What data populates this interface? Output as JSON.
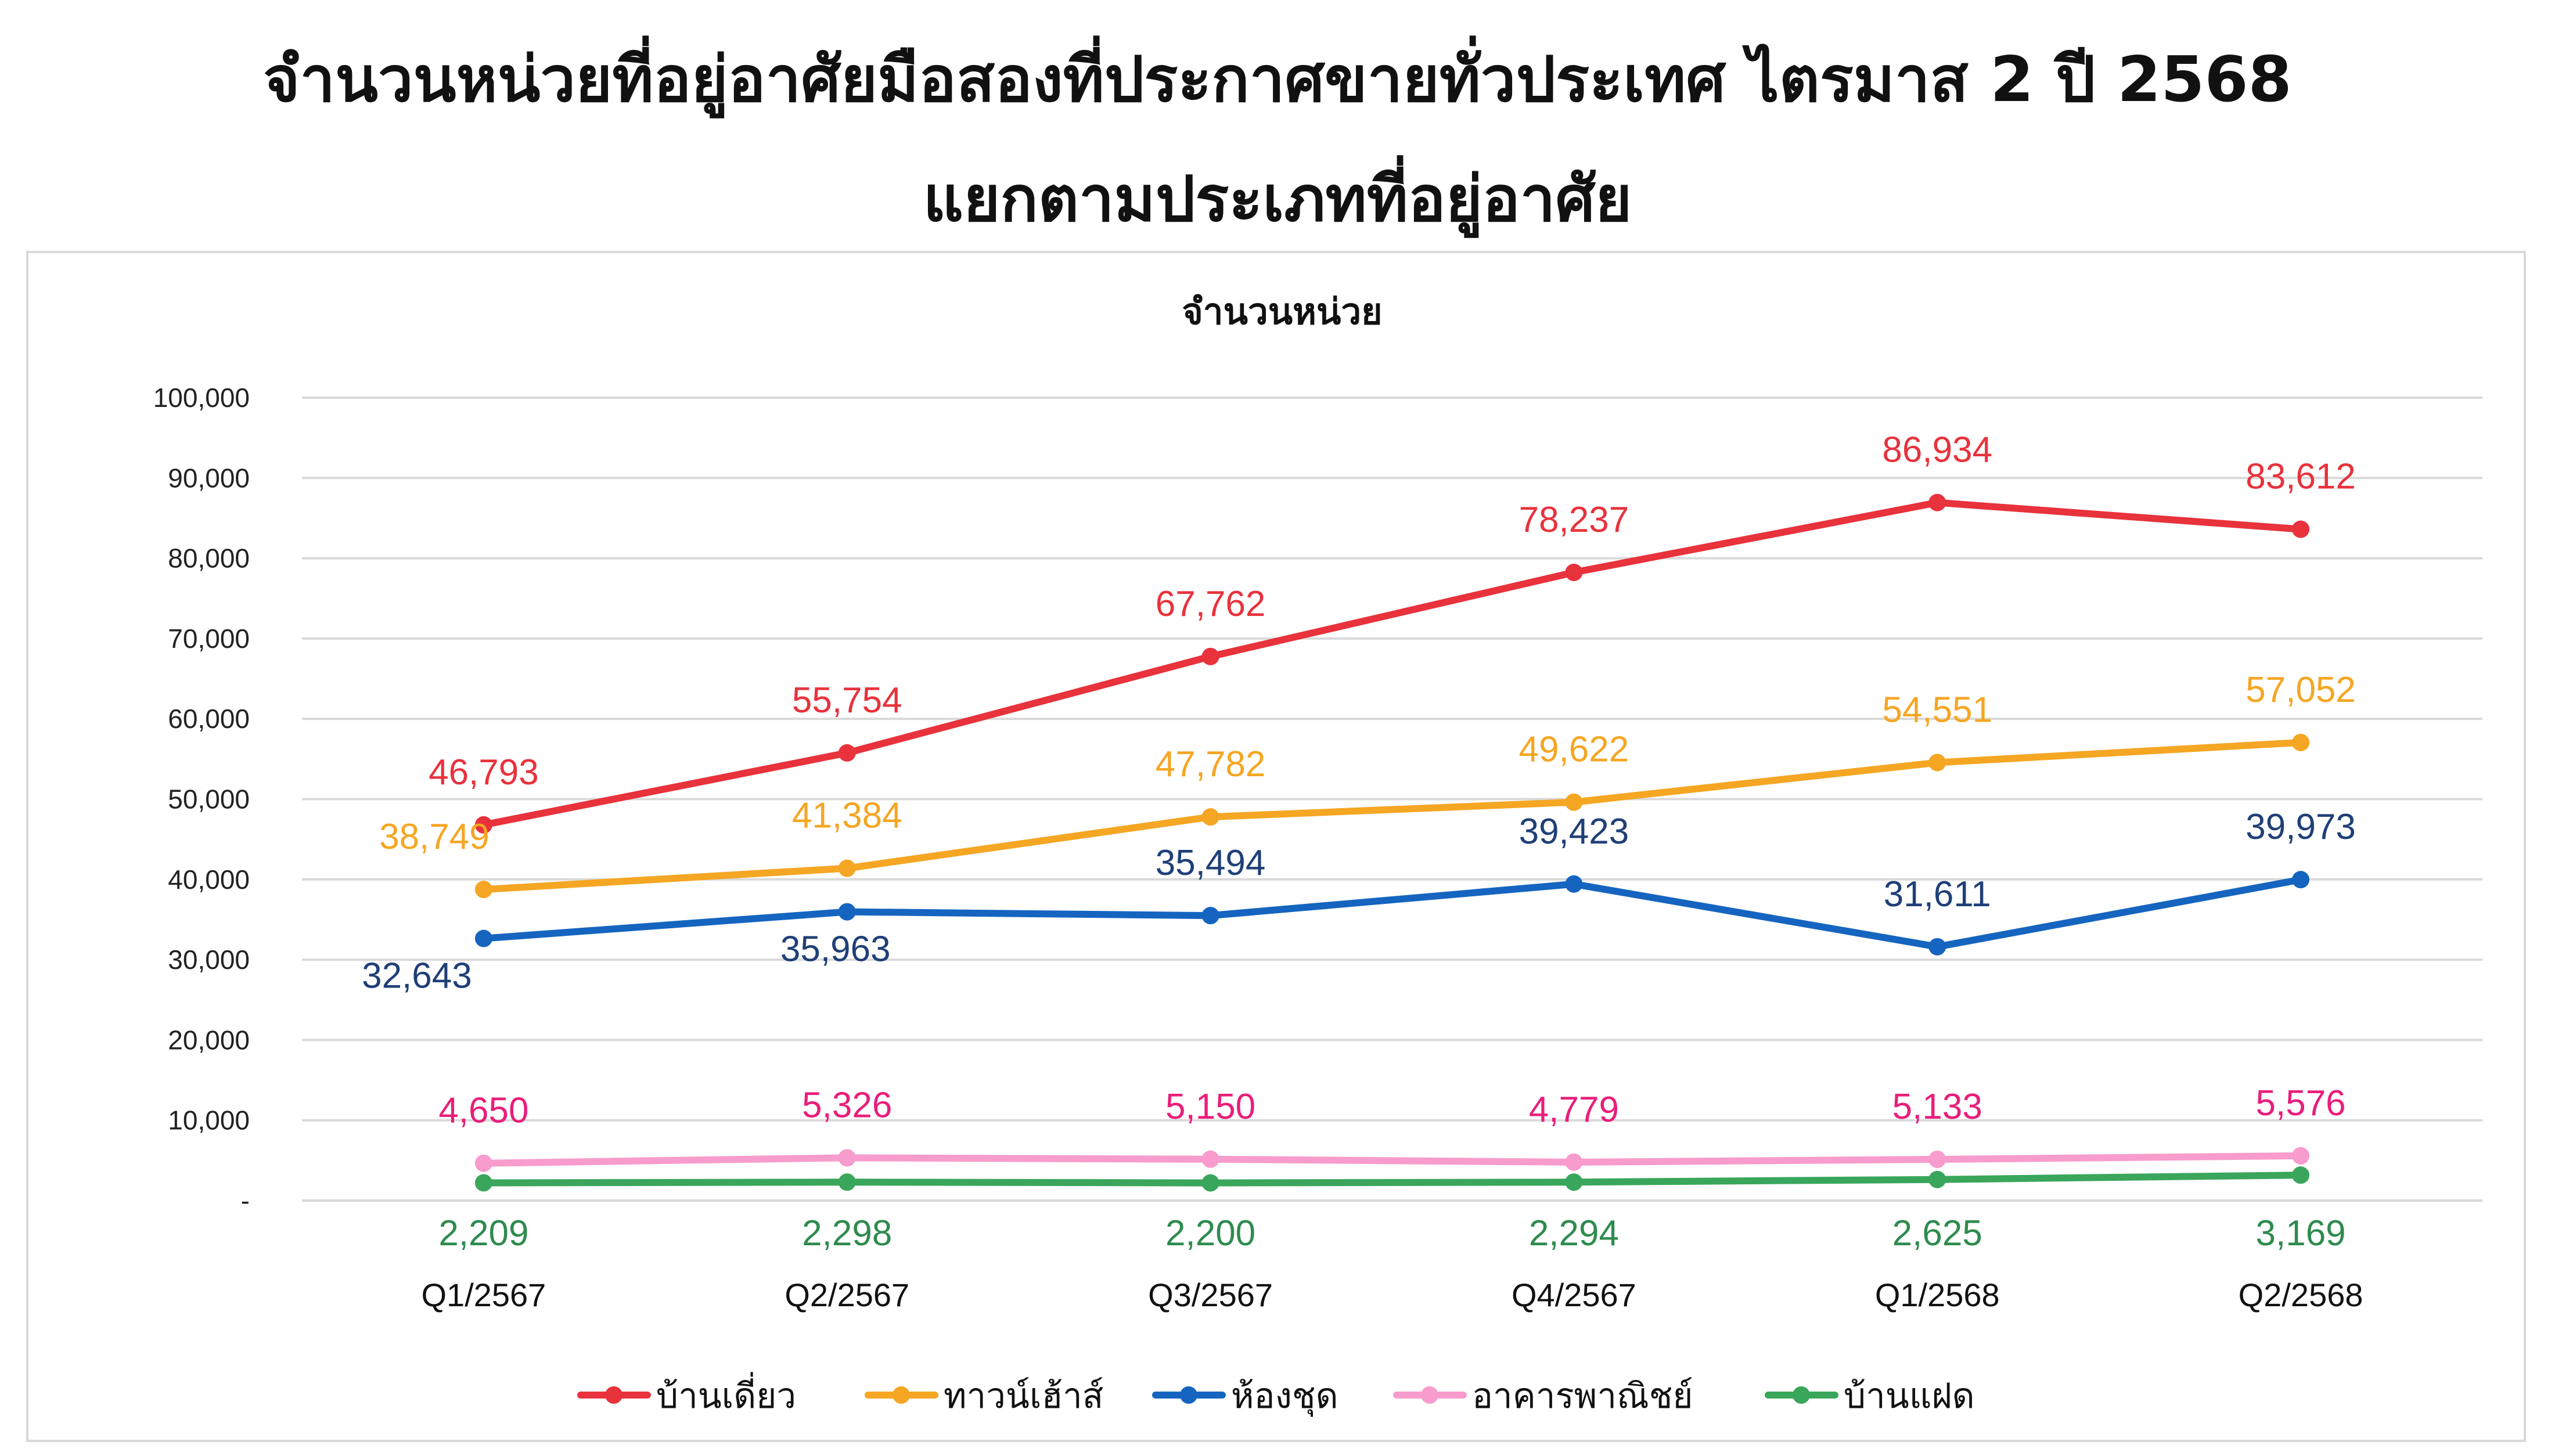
{
  "page": {
    "title_line1": "จำนวนหน่วยที่อยู่อาศัยมือสองที่ประกาศขายทั่วประเทศ ไตรมาส 2 ปี 2568",
    "title_line2": "แยกตามประเภทที่อยู่อาศัย"
  },
  "chart_data": {
    "type": "line",
    "title": "จำนวนหน่วย",
    "categories": [
      "Q1/2567",
      "Q2/2567",
      "Q3/2567",
      "Q4/2567",
      "Q1/2568",
      "Q2/2568"
    ],
    "ylim": [
      0,
      100000
    ],
    "ytick_labels": [
      "-",
      "10,000",
      "20,000",
      "30,000",
      "40,000",
      "50,000",
      "60,000",
      "70,000",
      "80,000",
      "90,000",
      "100,000"
    ],
    "grid": true,
    "legend_position": "bottom",
    "series": [
      {
        "name": "บ้านเดี่ยว",
        "color": "#e8323c",
        "label_color": "#e8323c",
        "values": [
          46793,
          55754,
          67762,
          78237,
          86934,
          83612
        ],
        "labels": [
          "46,793",
          "55,754",
          "67,762",
          "78,237",
          "86,934",
          "83,612"
        ]
      },
      {
        "name": "ทาวน์เฮ้าส์",
        "color": "#f5a623",
        "label_color": "#f5a623",
        "values": [
          38749,
          41384,
          47782,
          49622,
          54551,
          57052
        ],
        "labels": [
          "38,749",
          "41,384",
          "47,782",
          "49,622",
          "54,551",
          "57,052"
        ]
      },
      {
        "name": "ห้องชุด",
        "color": "#1565c0",
        "label_color": "#1f3f77",
        "values": [
          32643,
          35963,
          35494,
          39423,
          31611,
          39973
        ],
        "labels": [
          "32,643",
          "35,963",
          "35,494",
          "39,423",
          "31,611",
          "39,973"
        ]
      },
      {
        "name": "อาคารพาณิชย์",
        "color": "#f79ccd",
        "label_color": "#e91e7a",
        "values": [
          4650,
          5326,
          5150,
          4779,
          5133,
          5576
        ],
        "labels": [
          "4,650",
          "5,326",
          "5,150",
          "4,779",
          "5,133",
          "5,576"
        ]
      },
      {
        "name": "บ้านแฝด",
        "color": "#3aa65c",
        "label_color": "#2e8b4e",
        "values": [
          2209,
          2298,
          2200,
          2294,
          2625,
          3169
        ],
        "labels": [
          "2,209",
          "2,298",
          "2,200",
          "2,294",
          "2,625",
          "3,169"
        ]
      }
    ]
  }
}
